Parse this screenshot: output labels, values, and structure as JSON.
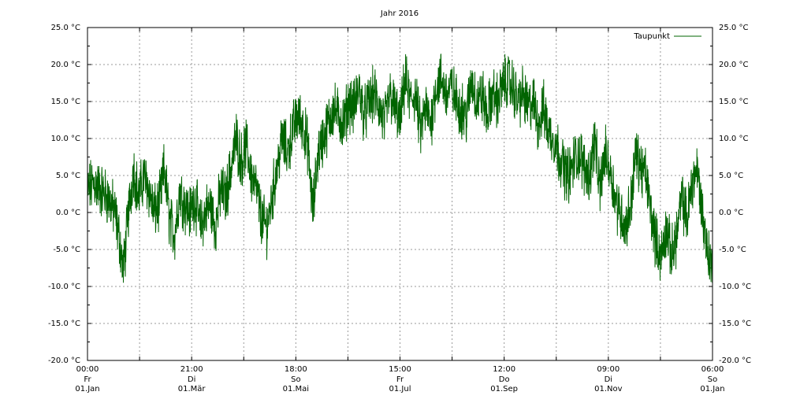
{
  "chart_data": {
    "type": "line",
    "title": "Jahr 2016",
    "ylim": [
      -20,
      25
    ],
    "y_ticks": [
      -20,
      -15,
      -10,
      -5,
      0,
      5,
      10,
      15,
      20,
      25
    ],
    "y_tick_labels": [
      "-20.0 °C",
      "-15.0 °C",
      "-10.0 °C",
      "-5.0 °C",
      "0.0 °C",
      "5.0 °C",
      "10.0 °C",
      "15.0 °C",
      "20.0 °C",
      "25.0 °C"
    ],
    "x_ticks": [
      {
        "time": "00:00",
        "weekday": "Fr",
        "date": "01.Jan"
      },
      {
        "time": "21:00",
        "weekday": "Di",
        "date": "01.Mär"
      },
      {
        "time": "18:00",
        "weekday": "So",
        "date": "01.Mai"
      },
      {
        "time": "15:00",
        "weekday": "Fr",
        "date": "01.Jul"
      },
      {
        "time": "12:00",
        "weekday": "Do",
        "date": "01.Sep"
      },
      {
        "time": "09:00",
        "weekday": "Di",
        "date": "01.Nov"
      },
      {
        "time": "06:00",
        "weekday": "So",
        "date": "01.Jan"
      }
    ],
    "grid": true,
    "legend_position": "top-right",
    "series": [
      {
        "name": "Taupunkt",
        "color": "#006400",
        "x_unit": "day of year",
        "x": [
          0,
          4,
          8,
          12,
          16,
          19,
          21,
          24,
          27,
          30,
          33,
          36,
          39,
          42,
          45,
          48,
          51,
          54,
          57,
          60,
          63,
          66,
          69,
          72,
          75,
          78,
          81,
          84,
          87,
          90,
          93,
          96,
          99,
          102,
          105,
          108,
          111,
          114,
          117,
          120,
          123,
          126,
          129,
          132,
          135,
          138,
          141,
          144,
          147,
          150,
          153,
          156,
          159,
          162,
          165,
          168,
          171,
          174,
          177,
          180,
          183,
          186,
          189,
          192,
          195,
          198,
          201,
          204,
          207,
          210,
          213,
          216,
          219,
          222,
          225,
          228,
          231,
          234,
          237,
          240,
          243,
          246,
          249,
          252,
          255,
          258,
          261,
          264,
          267,
          270,
          273,
          276,
          279,
          282,
          285,
          288,
          291,
          294,
          297,
          300,
          303,
          306,
          309,
          312,
          315,
          318,
          321,
          324,
          327,
          330,
          333,
          336,
          339,
          342,
          345,
          348,
          351,
          354,
          357,
          360,
          363,
          366
        ],
        "y": [
          3,
          4,
          3,
          2,
          0,
          -4,
          -8,
          0,
          6,
          2,
          5,
          3,
          0,
          1,
          6,
          -1,
          -3,
          3,
          1,
          0,
          2,
          -2,
          0,
          1,
          -2,
          3,
          2,
          6,
          10,
          7,
          9,
          5,
          3,
          -1,
          -2,
          2,
          6,
          10,
          8,
          11,
          13,
          12,
          9,
          0,
          8,
          10,
          12,
          14,
          13,
          12,
          15,
          14,
          17,
          13,
          15,
          16,
          14,
          12,
          16,
          14,
          12,
          18,
          15,
          16,
          11,
          14,
          12,
          17,
          18,
          16,
          17,
          15,
          14,
          13,
          18,
          15,
          16,
          13,
          16,
          15,
          17,
          18,
          17,
          15,
          16,
          14,
          15,
          12,
          14,
          11,
          10,
          8,
          6,
          5,
          7,
          8,
          6,
          5,
          10,
          3,
          8,
          6,
          2,
          0,
          -2,
          1,
          8,
          6,
          5,
          0,
          -4,
          -6,
          -2,
          -6,
          -3,
          2,
          -1,
          4,
          6,
          0,
          -5,
          -8
        ]
      }
    ]
  }
}
